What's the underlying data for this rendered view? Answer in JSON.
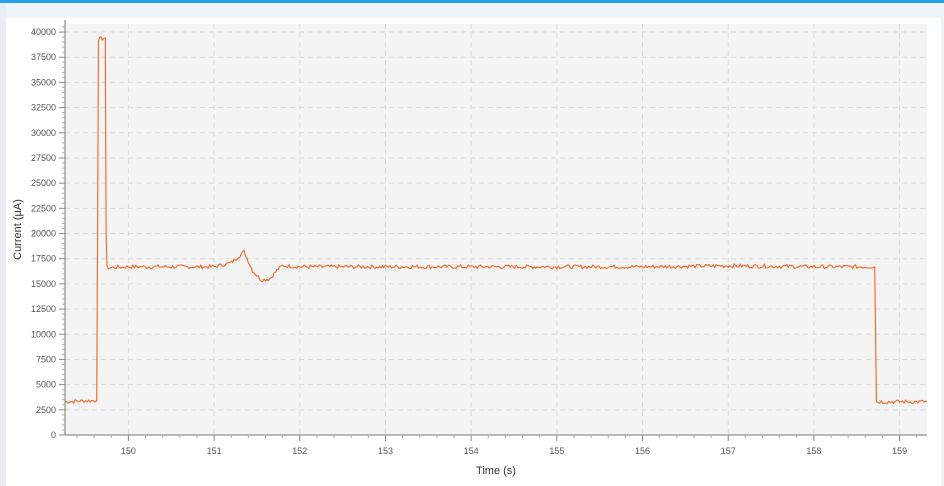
{
  "colors": {
    "accent": "#29a3e8",
    "series": "#f26522",
    "plot_background": "#f4f4f4",
    "grid": "#d9d9d9"
  },
  "chart_data": {
    "type": "line",
    "xlabel": "Time (s)",
    "ylabel": "Current (µA)",
    "xlim": [
      149.26,
      159.32
    ],
    "ylim": [
      0,
      40800
    ],
    "x_ticks": [
      150,
      151,
      152,
      153,
      154,
      155,
      156,
      157,
      158,
      159
    ],
    "y_ticks": [
      0,
      2500,
      5000,
      7500,
      10000,
      12500,
      15000,
      17500,
      20000,
      22500,
      25000,
      27500,
      30000,
      32500,
      35000,
      37500,
      40000
    ],
    "grid": true,
    "legend": "none",
    "series": [
      {
        "x": [
          149.26,
          149.5,
          149.63,
          149.64,
          149.65,
          149.73,
          149.74,
          149.75,
          150.0,
          150.5,
          151.0,
          151.2,
          151.35,
          151.45,
          151.55,
          151.65,
          151.75,
          151.8,
          152.0,
          153.0,
          154.0,
          155.0,
          156.0,
          157.0,
          158.0,
          158.71,
          158.72,
          158.73,
          159.0,
          159.32
        ],
        "y": [
          3300,
          3400,
          3400,
          20000,
          39300,
          39400,
          20000,
          16600,
          16700,
          16700,
          16700,
          17100,
          18200,
          16300,
          15400,
          15500,
          16500,
          16800,
          16700,
          16700,
          16700,
          16700,
          16700,
          16800,
          16700,
          16700,
          10000,
          3300,
          3300,
          3300
        ]
      }
    ]
  }
}
